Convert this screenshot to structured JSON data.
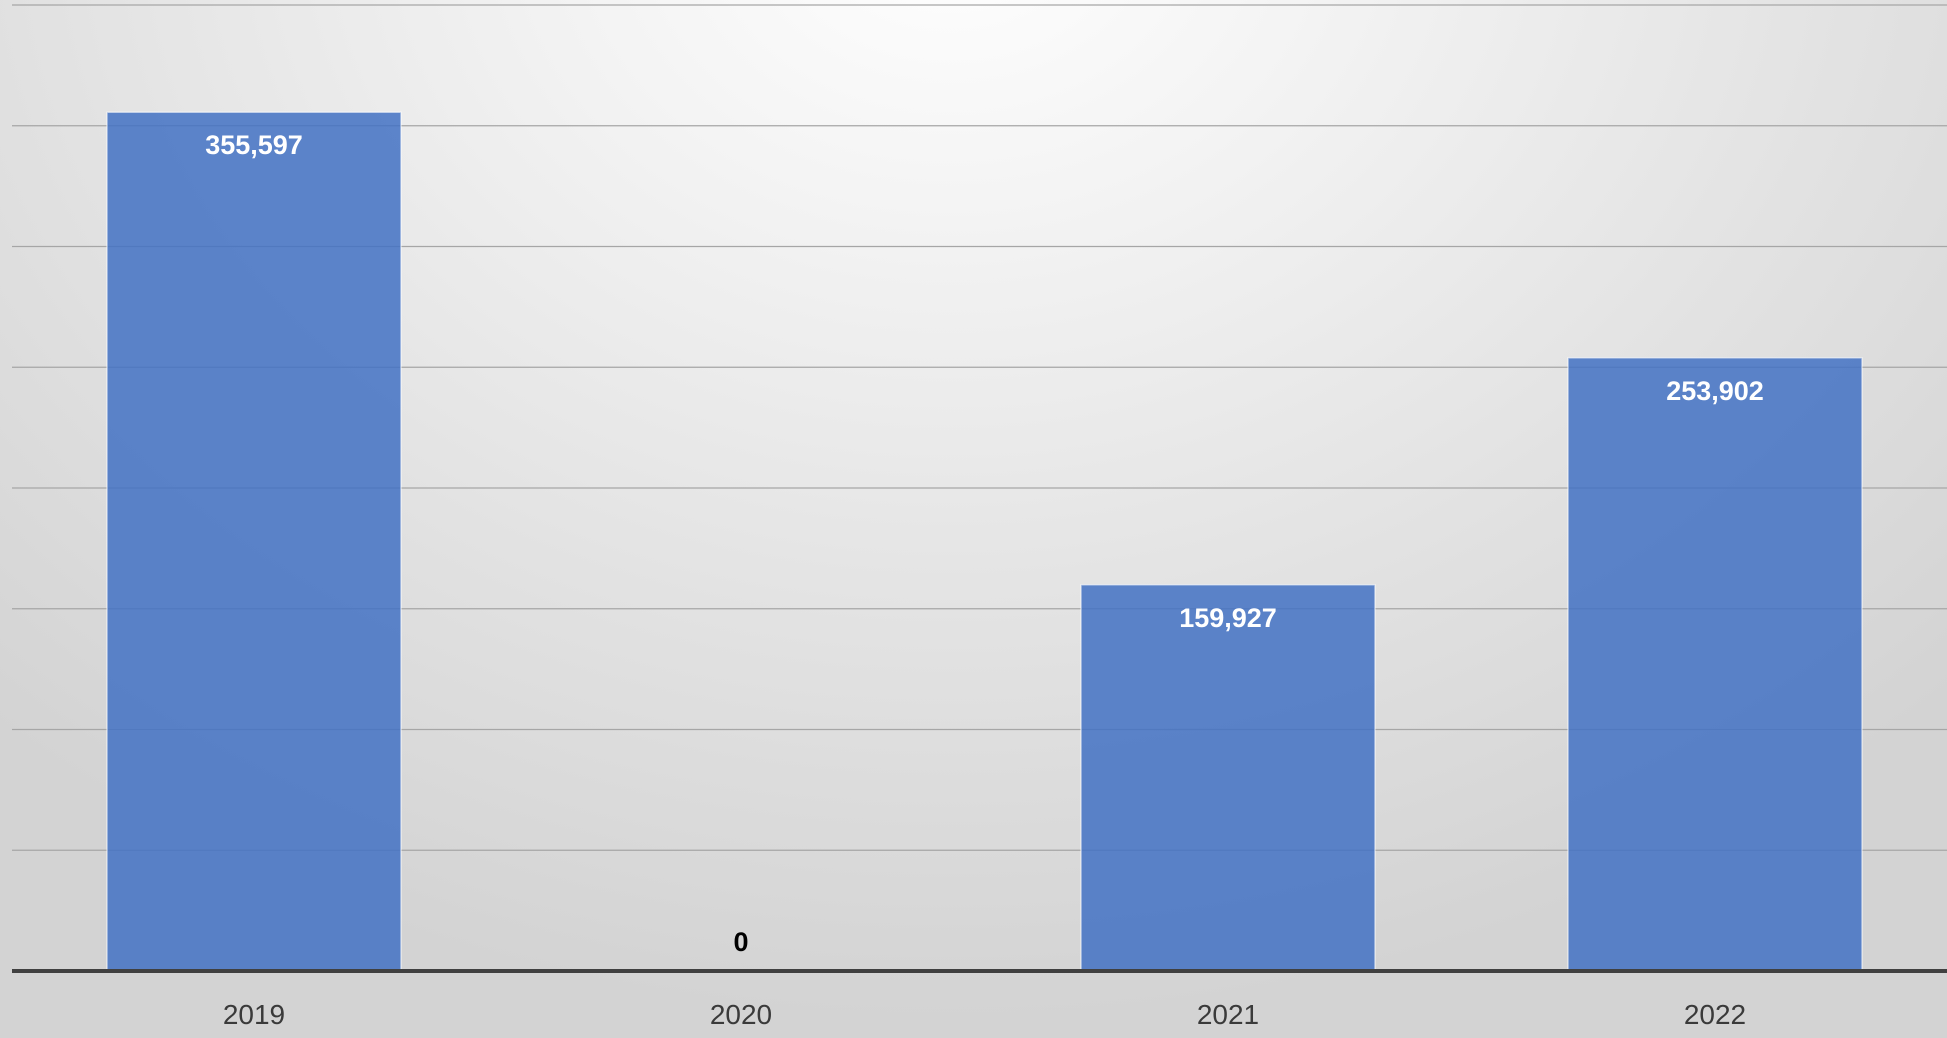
{
  "chart_data": {
    "type": "bar",
    "title": "",
    "xlabel": "",
    "ylabel": "",
    "categories": [
      "2019",
      "2020",
      "2021",
      "2022"
    ],
    "values": [
      355597,
      0,
      159927,
      253902
    ],
    "data_labels": [
      "355,597",
      "0",
      "159,927",
      "253,902"
    ],
    "ylim": [
      0,
      400000
    ],
    "y_gridline_step": 50000,
    "grid": true,
    "y_tick_labels_visible": false,
    "legend": "none",
    "colors": {
      "bar": "#4472c4",
      "label_inside_bar": "#ffffff",
      "label_outside_bar": "#000000",
      "gridline": "#a6a6a6",
      "axis": "#404040"
    }
  }
}
